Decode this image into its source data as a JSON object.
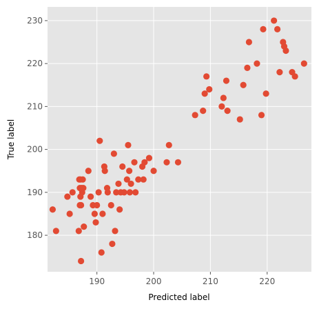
{
  "chart_data": {
    "type": "scatter",
    "title": "",
    "xlabel": "Predicted label",
    "ylabel": "True label",
    "xlim": [
      181.3,
      227.8
    ],
    "ylim": [
      171.5,
      233.2
    ],
    "xticks": [
      190,
      200,
      210,
      220
    ],
    "yticks": [
      180,
      190,
      200,
      210,
      220,
      230
    ],
    "xtick_labels": [
      "190",
      "200",
      "210",
      "220"
    ],
    "ytick_labels": [
      "180",
      "190",
      "200",
      "210",
      "220",
      "230"
    ],
    "grid": true,
    "style": "ggplot",
    "colors": {
      "background": "#e5e5e5",
      "grid": "#ffffff",
      "point": "#e24a33"
    },
    "x": [
      182.2,
      182.8,
      184.8,
      185.2,
      185.7,
      186.8,
      186.9,
      187.0,
      187.0,
      187.1,
      187.1,
      187.2,
      187.3,
      187.4,
      187.5,
      187.6,
      187.7,
      188.5,
      188.9,
      189.3,
      189.6,
      189.8,
      190.0,
      190.3,
      190.5,
      190.8,
      191.0,
      191.3,
      191.4,
      191.8,
      191.9,
      192.5,
      192.7,
      193.0,
      193.2,
      193.4,
      193.8,
      194.0,
      194.2,
      194.5,
      194.8,
      195.3,
      195.5,
      195.7,
      195.8,
      196.0,
      196.6,
      196.8,
      197.3,
      198.0,
      198.2,
      198.4,
      199.2,
      200.0,
      202.3,
      202.7,
      204.3,
      207.3,
      208.7,
      209.0,
      209.3,
      209.8,
      212.0,
      212.3,
      212.8,
      213.0,
      215.2,
      215.8,
      216.5,
      216.8,
      218.2,
      219.0,
      219.3,
      219.8,
      221.2,
      221.8,
      222.2,
      222.8,
      223.0,
      223.3,
      224.4,
      224.9,
      226.5
    ],
    "y": [
      186,
      181,
      189,
      185,
      190,
      181,
      193,
      191,
      187,
      189,
      193,
      187,
      191,
      190,
      193,
      191,
      182,
      195,
      189,
      187,
      185,
      183,
      187,
      190,
      202,
      176,
      185,
      196,
      195,
      191,
      190,
      187,
      178,
      199,
      181,
      190,
      192,
      186,
      190,
      196,
      190,
      193,
      201,
      195,
      190,
      192,
      197,
      190,
      193,
      196,
      193,
      197,
      198,
      195,
      197,
      201,
      197,
      208,
      209,
      213,
      217,
      214,
      210,
      212,
      216,
      209,
      207,
      215,
      219,
      225,
      220,
      208,
      228,
      213,
      230,
      228,
      218,
      225,
      224,
      223,
      218,
      217,
      220
    ],
    "extra_point": {
      "x": 187.2,
      "y": 174
    }
  }
}
